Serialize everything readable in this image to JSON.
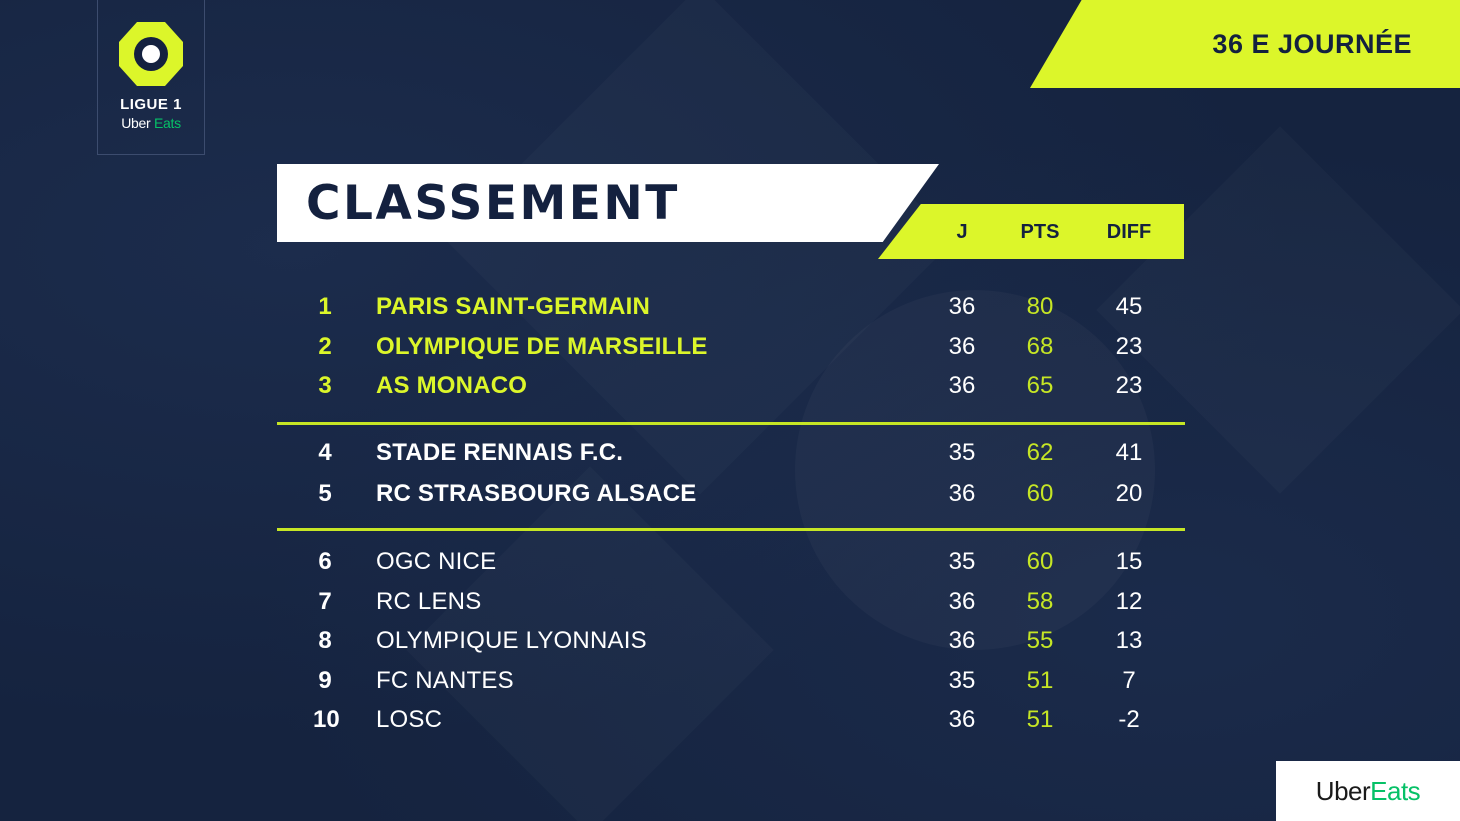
{
  "league": {
    "name": "LIGUE 1",
    "sponsor_part1": "Uber",
    "sponsor_part2": "Eats"
  },
  "matchday": "36 E JOURNÉE",
  "title": "CLASSEMENT",
  "columns": {
    "played": "J",
    "points": "PTS",
    "diff": "DIFF"
  },
  "standings": [
    {
      "pos": "1",
      "team": "PARIS SAINT-GERMAIN",
      "played": "36",
      "pts": "80",
      "diff": "45"
    },
    {
      "pos": "2",
      "team": "OLYMPIQUE DE MARSEILLE",
      "played": "36",
      "pts": "68",
      "diff": "23"
    },
    {
      "pos": "3",
      "team": "AS MONACO",
      "played": "36",
      "pts": "65",
      "diff": "23"
    },
    {
      "pos": "4",
      "team": "STADE RENNAIS F.C.",
      "played": "35",
      "pts": "62",
      "diff": "41"
    },
    {
      "pos": "5",
      "team": "RC STRASBOURG ALSACE",
      "played": "36",
      "pts": "60",
      "diff": "20"
    },
    {
      "pos": "6",
      "team": "OGC NICE",
      "played": "35",
      "pts": "60",
      "diff": "15"
    },
    {
      "pos": "7",
      "team": "RC LENS",
      "played": "36",
      "pts": "58",
      "diff": "12"
    },
    {
      "pos": "8",
      "team": "OLYMPIQUE LYONNAIS",
      "played": "36",
      "pts": "55",
      "diff": "13"
    },
    {
      "pos": "9",
      "team": "FC NANTES",
      "played": "35",
      "pts": "51",
      "diff": "7"
    },
    {
      "pos": "10",
      "team": "LOSC",
      "played": "36",
      "pts": "51",
      "diff": "-2"
    }
  ],
  "corner_sponsor": {
    "part1": "Uber",
    "part2": "Eats"
  },
  "colors": {
    "background": "#14213f",
    "accent": "#dcf62a",
    "uber_eats_green": "#06c167"
  }
}
